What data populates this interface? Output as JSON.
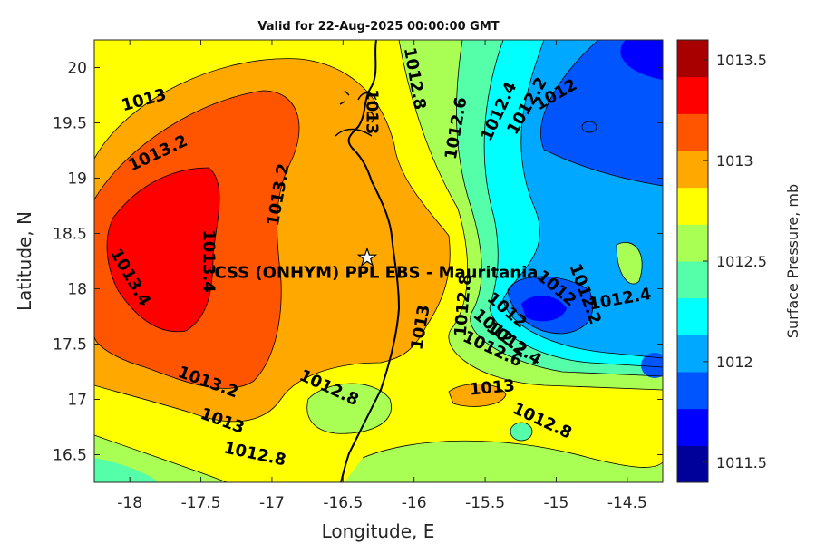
{
  "title": "Valid for 22-Aug-2025 00:00:00 GMT",
  "x_axis": {
    "label": "Longitude, E",
    "range": [
      -18.25,
      -14.25
    ],
    "ticks": [
      "-18",
      "-17.5",
      "-17",
      "-16.5",
      "-16",
      "-15.5",
      "-15",
      "-14.5"
    ]
  },
  "y_axis": {
    "label": "Latitude, N",
    "range": [
      16.25,
      20.25
    ],
    "ticks": [
      "16.5",
      "17",
      "17.5",
      "18",
      "18.5",
      "19",
      "19.5",
      "20"
    ]
  },
  "colorbar": {
    "label": "Surface Pressure, mb",
    "ticks": [
      "1011.5",
      "1012",
      "1012.5",
      "1013",
      "1013.5"
    ],
    "colors": [
      "#00009a",
      "#0000ff",
      "#0055ff",
      "#00a8ff",
      "#00ffff",
      "#55ffaa",
      "#aaff55",
      "#ffff00",
      "#ffa800",
      "#ff5500",
      "#ff0000",
      "#a80000"
    ]
  },
  "station": {
    "label": "CSS (ONHYM) PPL EBS  - Mauritania",
    "lon": -16.33,
    "lat": 18.28
  },
  "contour_labels": [
    {
      "text": "1013",
      "lon": -17.9,
      "lat": 19.7,
      "rot": -15
    },
    {
      "text": "1013.2",
      "lon": -17.8,
      "lat": 19.22,
      "rot": -25
    },
    {
      "text": "1013.2",
      "lon": -16.95,
      "lat": 18.85,
      "rot": -80
    },
    {
      "text": "1013.4",
      "lon": -18.0,
      "lat": 18.1,
      "rot": 60
    },
    {
      "text": "1013.4",
      "lon": -17.45,
      "lat": 18.25,
      "rot": 90
    },
    {
      "text": "1013.2",
      "lon": -17.45,
      "lat": 17.15,
      "rot": 20
    },
    {
      "text": "1013",
      "lon": -17.35,
      "lat": 16.8,
      "rot": 20
    },
    {
      "text": "1012.8",
      "lon": -17.12,
      "lat": 16.5,
      "rot": 12
    },
    {
      "text": "1012.8",
      "lon": -16.6,
      "lat": 17.1,
      "rot": 25
    },
    {
      "text": "1013",
      "lon": -16.3,
      "lat": 19.6,
      "rot": 90
    },
    {
      "text": "1012.8",
      "lon": -16.0,
      "lat": 19.9,
      "rot": 80
    },
    {
      "text": "1012.6",
      "lon": -15.7,
      "lat": 19.45,
      "rot": -80
    },
    {
      "text": "1012.4",
      "lon": -15.4,
      "lat": 19.6,
      "rot": -65
    },
    {
      "text": "1012.2",
      "lon": -15.2,
      "lat": 19.65,
      "rot": -60
    },
    {
      "text": "1012",
      "lon": -15.0,
      "lat": 19.75,
      "rot": -30
    },
    {
      "text": "1012.8",
      "lon": -15.65,
      "lat": 17.85,
      "rot": -85
    },
    {
      "text": "1013",
      "lon": -15.95,
      "lat": 17.65,
      "rot": -80
    },
    {
      "text": "1012",
      "lon": -15.35,
      "lat": 17.8,
      "rot": 40
    },
    {
      "text": "1012.2",
      "lon": -15.4,
      "lat": 17.6,
      "rot": 40
    },
    {
      "text": "1012.4",
      "lon": -15.3,
      "lat": 17.5,
      "rot": 35
    },
    {
      "text": "1012.6",
      "lon": -15.45,
      "lat": 17.45,
      "rot": 25
    },
    {
      "text": "1012",
      "lon": -15.0,
      "lat": 18.0,
      "rot": 40
    },
    {
      "text": "1012.2",
      "lon": -14.8,
      "lat": 17.95,
      "rot": 70
    },
    {
      "text": "1012.4",
      "lon": -14.55,
      "lat": 17.9,
      "rot": -10
    },
    {
      "text": "1013",
      "lon": -15.45,
      "lat": 17.1,
      "rot": -5
    },
    {
      "text": "1012.8",
      "lon": -15.1,
      "lat": 16.8,
      "rot": 25
    }
  ]
}
